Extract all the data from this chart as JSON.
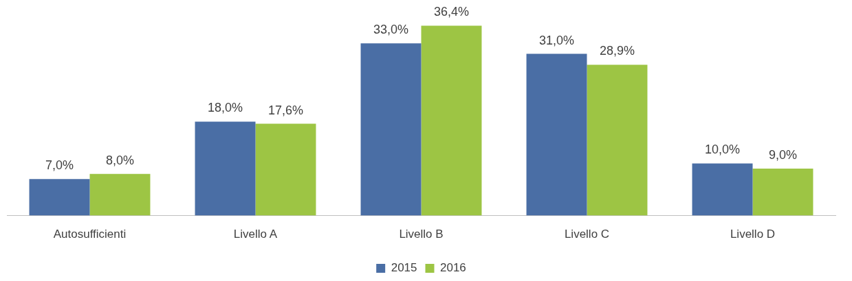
{
  "chart_data": {
    "type": "bar",
    "categories": [
      "Autosufficienti",
      "Livello A",
      "Livello B",
      "Livello C",
      "Livello D"
    ],
    "series": [
      {
        "name": "2015",
        "color": "#4a6ea5",
        "values": [
          7.0,
          18.0,
          33.0,
          31.0,
          10.0
        ],
        "value_labels": [
          "7,0%",
          "18,0%",
          "33,0%",
          "31,0%",
          "10,0%"
        ]
      },
      {
        "name": "2016",
        "color": "#9dc544",
        "values": [
          8.0,
          17.6,
          36.4,
          28.9,
          9.0
        ],
        "value_labels": [
          "8,0%",
          "17,6%",
          "36,4%",
          "28,9%",
          "9,0%"
        ]
      }
    ],
    "legend": "bottom",
    "grid": false
  }
}
